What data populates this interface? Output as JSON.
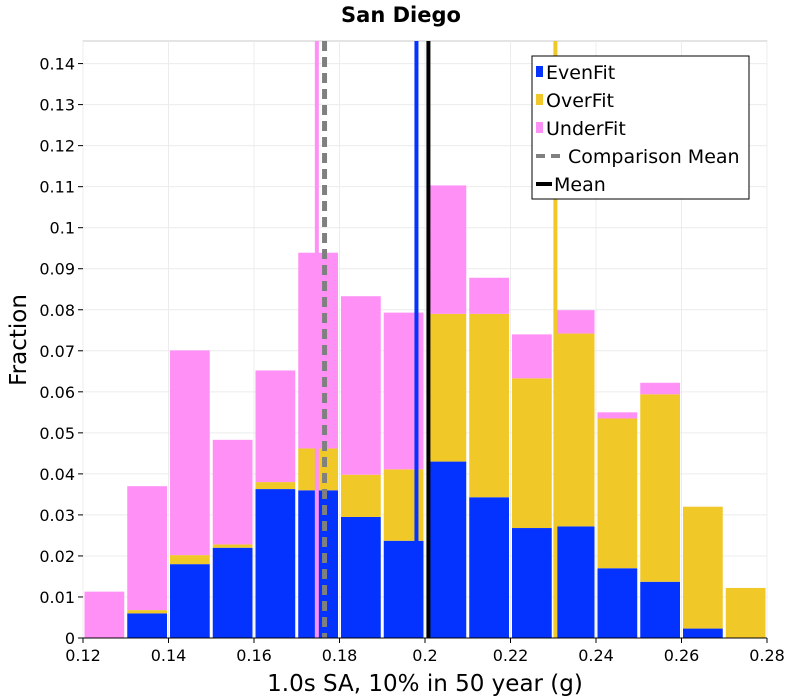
{
  "chart_data": {
    "type": "bar",
    "stacked": true,
    "title": "San Diego",
    "xlabel": "1.0s SA, 10% in 50 year (g)",
    "ylabel": "Fraction",
    "xlim": [
      0.12,
      0.28
    ],
    "ylim": [
      0,
      0.1455
    ],
    "bin_width": 0.01,
    "bin_starts": [
      0.12,
      0.13,
      0.14,
      0.15,
      0.16,
      0.17,
      0.18,
      0.19,
      0.2,
      0.21,
      0.22,
      0.23,
      0.24,
      0.25,
      0.26,
      0.27
    ],
    "series": [
      {
        "name": "EvenFit",
        "color": "#0433ff",
        "values": [
          0.0,
          0.006,
          0.018,
          0.022,
          0.0363,
          0.036,
          0.0295,
          0.0237,
          0.043,
          0.0343,
          0.0268,
          0.0272,
          0.017,
          0.0137,
          0.0023,
          0.0
        ]
      },
      {
        "name": "OverFit",
        "color": "#f0c929",
        "values": [
          0.0,
          0.0008,
          0.0022,
          0.0008,
          0.0017,
          0.0102,
          0.0103,
          0.0174,
          0.036,
          0.0447,
          0.0365,
          0.047,
          0.0365,
          0.0457,
          0.0297,
          0.0122
        ]
      },
      {
        "name": "UnderFit",
        "color": "#ff90f5",
        "values": [
          0.0113,
          0.0302,
          0.0499,
          0.0255,
          0.0272,
          0.0477,
          0.0435,
          0.0382,
          0.0313,
          0.0088,
          0.0107,
          0.0057,
          0.0015,
          0.0028,
          0.0,
          0.0
        ]
      }
    ],
    "vertical_lines": [
      {
        "name": "EvenFit mean",
        "x": 0.198,
        "color": "#0433ff",
        "style": "solid"
      },
      {
        "name": "OverFit mean",
        "x": 0.2305,
        "color": "#f0c929",
        "style": "solid"
      },
      {
        "name": "UnderFit mean",
        "x": 0.1747,
        "color": "#ff90f5",
        "style": "solid"
      },
      {
        "name": "Comparison Mean",
        "x": 0.1765,
        "color": "#808080",
        "style": "dashed"
      },
      {
        "name": "Mean",
        "x": 0.2008,
        "color": "#000000",
        "style": "solid"
      }
    ],
    "x_ticks": [
      "0.12",
      "0.14",
      "0.16",
      "0.18",
      "0.2",
      "0.22",
      "0.24",
      "0.26",
      "0.28"
    ],
    "y_ticks": [
      "0",
      "0.01",
      "0.02",
      "0.03",
      "0.04",
      "0.05",
      "0.06",
      "0.07",
      "0.08",
      "0.09",
      "0.1",
      "0.11",
      "0.12",
      "0.13",
      "0.14"
    ],
    "legend": {
      "position": "top-right",
      "items": [
        {
          "label": "EvenFit",
          "color": "#0433ff",
          "kind": "box"
        },
        {
          "label": "OverFit",
          "color": "#f0c929",
          "kind": "box"
        },
        {
          "label": "UnderFit",
          "color": "#ff90f5",
          "kind": "box"
        },
        {
          "label": "Comparison Mean",
          "color": "#808080",
          "kind": "dashed-line"
        },
        {
          "label": "Mean",
          "color": "#000000",
          "kind": "line"
        }
      ]
    },
    "grid": true
  }
}
